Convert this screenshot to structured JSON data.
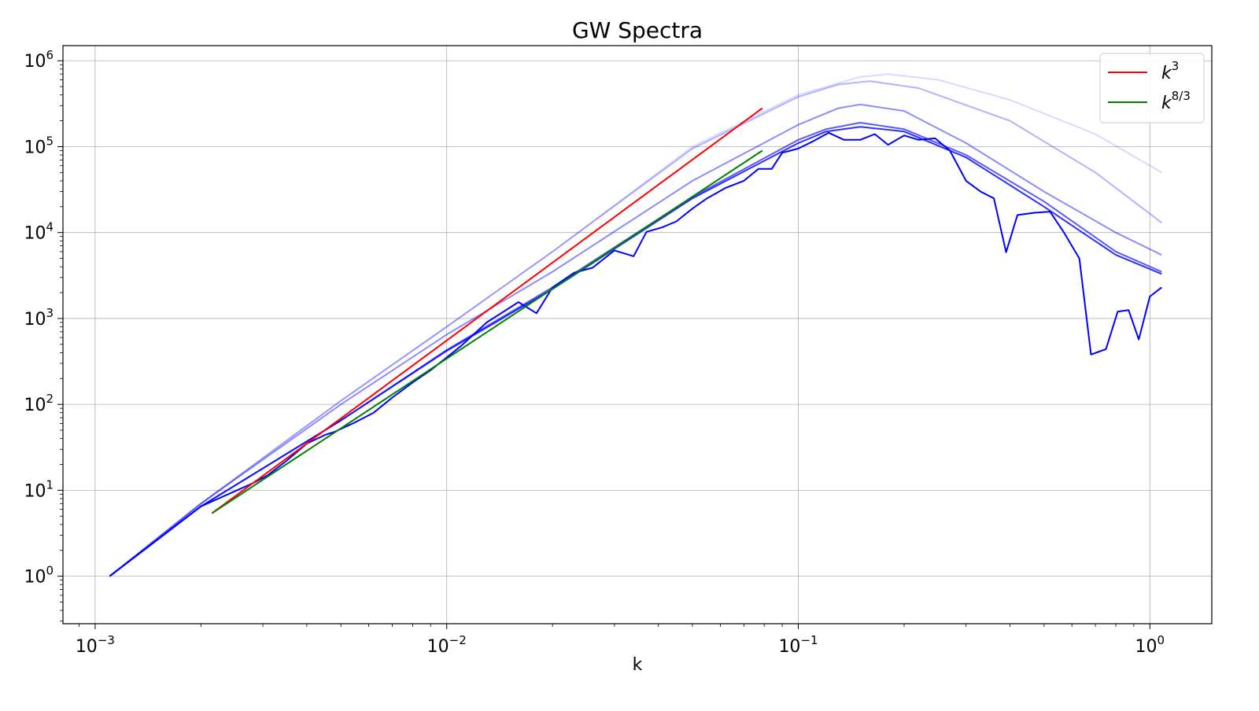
{
  "chart_data": {
    "type": "line",
    "title": "GW Spectra",
    "xlabel": "k",
    "ylabel": "",
    "xscale": "log",
    "yscale": "log",
    "xlim": [
      0.00081,
      1.5
    ],
    "ylim": [
      0.28,
      1500000
    ],
    "grid": true,
    "legend_position": "top-right",
    "x_ticks": [
      {
        "value": 0.001,
        "base": "10",
        "exp": "−3"
      },
      {
        "value": 0.01,
        "base": "10",
        "exp": "−2"
      },
      {
        "value": 0.1,
        "base": "10",
        "exp": "−1"
      },
      {
        "value": 1,
        "base": "10",
        "exp": "0"
      }
    ],
    "y_ticks": [
      {
        "value": 1,
        "base": "10",
        "exp": "0"
      },
      {
        "value": 10,
        "base": "10",
        "exp": "1"
      },
      {
        "value": 100,
        "base": "10",
        "exp": "2"
      },
      {
        "value": 1000,
        "base": "10",
        "exp": "3"
      },
      {
        "value": 10000,
        "base": "10",
        "exp": "4"
      },
      {
        "value": 100000,
        "base": "10",
        "exp": "5"
      },
      {
        "value": 1000000,
        "base": "10",
        "exp": "6"
      }
    ],
    "series": [
      {
        "color": "#0000ff",
        "opacity": 0.15,
        "x": [
          0.0011,
          0.002,
          0.005,
          0.01,
          0.02,
          0.05,
          0.1,
          0.15,
          0.18,
          0.25,
          0.4,
          0.7,
          1.08
        ],
        "y": [
          1,
          7,
          110,
          800,
          6000,
          100000,
          400000,
          650000,
          700000,
          600000,
          350000,
          140000,
          50000
        ]
      },
      {
        "color": "#0000ff",
        "opacity": 0.3,
        "x": [
          0.0011,
          0.002,
          0.005,
          0.01,
          0.02,
          0.05,
          0.1,
          0.13,
          0.16,
          0.22,
          0.4,
          0.7,
          1.08
        ],
        "y": [
          1,
          7,
          110,
          800,
          6000,
          95000,
          380000,
          530000,
          580000,
          480000,
          200000,
          50000,
          13000
        ]
      },
      {
        "color": "#0000ff",
        "opacity": 0.45,
        "x": [
          0.0011,
          0.002,
          0.005,
          0.01,
          0.02,
          0.05,
          0.1,
          0.13,
          0.15,
          0.2,
          0.3,
          0.5,
          0.8,
          1.08
        ],
        "y": [
          1,
          7,
          100,
          650,
          3500,
          40000,
          180000,
          280000,
          310000,
          260000,
          110000,
          30000,
          10000,
          5500
        ]
      },
      {
        "color": "#0000ff",
        "opacity": 0.65,
        "x": [
          0.0011,
          0.002,
          0.005,
          0.01,
          0.02,
          0.05,
          0.1,
          0.12,
          0.15,
          0.2,
          0.3,
          0.5,
          0.8,
          1.08
        ],
        "y": [
          1,
          6.5,
          65,
          430,
          2300,
          26000,
          120000,
          160000,
          190000,
          160000,
          80000,
          23000,
          6000,
          3500
        ]
      },
      {
        "color": "#0000ff",
        "opacity": 0.82,
        "x": [
          0.0011,
          0.002,
          0.005,
          0.01,
          0.02,
          0.05,
          0.1,
          0.12,
          0.15,
          0.2,
          0.3,
          0.5,
          0.8,
          1.08
        ],
        "y": [
          1,
          6.5,
          65,
          420,
          2200,
          25000,
          110000,
          150000,
          170000,
          150000,
          75000,
          20000,
          5500,
          3300
        ]
      },
      {
        "color": "#0000ff",
        "opacity": 1.0,
        "x": [
          0.0011,
          0.002,
          0.0028,
          0.0031,
          0.0035,
          0.004,
          0.0045,
          0.0048,
          0.0055,
          0.0062,
          0.007,
          0.008,
          0.009,
          0.011,
          0.013,
          0.016,
          0.018,
          0.02,
          0.023,
          0.026,
          0.03,
          0.034,
          0.037,
          0.041,
          0.045,
          0.05,
          0.055,
          0.062,
          0.07,
          0.077,
          0.084,
          0.09,
          0.095,
          0.1,
          0.11,
          0.122,
          0.135,
          0.15,
          0.165,
          0.18,
          0.2,
          0.22,
          0.245,
          0.27,
          0.3,
          0.33,
          0.36,
          0.39,
          0.42,
          0.47,
          0.52,
          0.57,
          0.63,
          0.68,
          0.75,
          0.81,
          0.87,
          0.93,
          1.0,
          1.08
        ],
        "y": [
          1,
          6.5,
          12,
          15,
          22,
          35,
          44,
          48,
          62,
          80,
          120,
          180,
          250,
          480,
          900,
          1550,
          1150,
          2300,
          3400,
          3900,
          6200,
          5300,
          10200,
          11500,
          13500,
          19000,
          25000,
          33000,
          40000,
          55000,
          55000,
          85000,
          90000,
          95000,
          115000,
          145000,
          120000,
          120000,
          140000,
          105000,
          135000,
          120000,
          125000,
          90000,
          40000,
          30000,
          25000,
          5900,
          16000,
          17000,
          17500,
          10000,
          5000,
          380,
          440,
          1200,
          1250,
          570,
          1800,
          2300
        ]
      }
    ],
    "guide_lines": [
      {
        "label_base": "k",
        "label_exp": "3",
        "color": "#ff0000",
        "x": [
          0.00215,
          0.079
        ],
        "y": [
          5.4,
          280000
        ]
      },
      {
        "label_base": "k",
        "label_exp": "8/3",
        "color": "#008000",
        "x": [
          0.00215,
          0.079
        ],
        "y": [
          5.4,
          90000
        ]
      }
    ]
  }
}
